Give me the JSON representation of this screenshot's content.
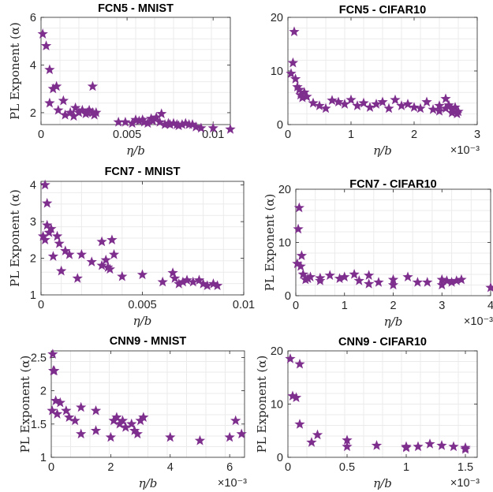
{
  "colors": {
    "marker": "#7E2F8E",
    "axis": "#262626",
    "grid": "#ebebeb"
  },
  "chart_data": [
    {
      "type": "scatter",
      "title": "FCN5 - MNIST",
      "xlabel": "η/b",
      "ylabel": "PL Exponent (α)",
      "xlim": [
        0,
        0.011
      ],
      "ylim": [
        1.5,
        6
      ],
      "xticks": [
        0,
        0.005,
        0.01
      ],
      "xticklabels": [
        "0",
        "0.005",
        "0.01"
      ],
      "yticks": [
        2,
        4,
        6
      ],
      "yticklabels": [
        "2",
        "4",
        "6"
      ],
      "grid": true,
      "marker": "star",
      "points": [
        [
          0.0001,
          5.3
        ],
        [
          0.0003,
          4.8
        ],
        [
          0.0005,
          3.8
        ],
        [
          0.0005,
          2.4
        ],
        [
          0.0007,
          3.0
        ],
        [
          0.0009,
          3.1
        ],
        [
          0.001,
          2.1
        ],
        [
          0.0013,
          2.5
        ],
        [
          0.0014,
          1.9
        ],
        [
          0.0017,
          2.0
        ],
        [
          0.0019,
          1.85
        ],
        [
          0.002,
          2.2
        ],
        [
          0.0022,
          2.0
        ],
        [
          0.0024,
          2.1
        ],
        [
          0.0026,
          1.95
        ],
        [
          0.0027,
          2.0
        ],
        [
          0.0028,
          2.1
        ],
        [
          0.003,
          2.0
        ],
        [
          0.003,
          3.1
        ],
        [
          0.0031,
          1.9
        ],
        [
          0.0032,
          2.0
        ],
        [
          0.0045,
          1.6
        ],
        [
          0.0049,
          1.6
        ],
        [
          0.0053,
          1.55
        ],
        [
          0.0055,
          1.7
        ],
        [
          0.0057,
          1.65
        ],
        [
          0.0059,
          1.7
        ],
        [
          0.006,
          1.6
        ],
        [
          0.0062,
          1.55
        ],
        [
          0.0064,
          1.75
        ],
        [
          0.0065,
          1.65
        ],
        [
          0.0067,
          1.8
        ],
        [
          0.0069,
          1.6
        ],
        [
          0.007,
          1.95
        ],
        [
          0.0072,
          1.5
        ],
        [
          0.0074,
          1.55
        ],
        [
          0.0075,
          1.5
        ],
        [
          0.0077,
          1.55
        ],
        [
          0.0079,
          1.5
        ],
        [
          0.008,
          1.45
        ],
        [
          0.0082,
          1.5
        ],
        [
          0.0084,
          1.55
        ],
        [
          0.0086,
          1.5
        ],
        [
          0.0088,
          1.5
        ],
        [
          0.009,
          1.4
        ],
        [
          0.0093,
          1.35
        ],
        [
          0.01,
          1.35
        ],
        [
          0.011,
          1.3
        ]
      ]
    },
    {
      "type": "scatter",
      "title": "FCN5 - CIFAR10",
      "xlabel": "η/b",
      "ylabel": "",
      "xlim": [
        0,
        0.003
      ],
      "ylim": [
        0,
        20
      ],
      "xticks": [
        0,
        0.001,
        0.002,
        0.003
      ],
      "xticklabels": [
        "0",
        "1",
        "2",
        "3"
      ],
      "yticks": [
        0,
        10,
        20
      ],
      "yticklabels": [
        "0",
        "10",
        "20"
      ],
      "exponent": "×10⁻³",
      "grid": true,
      "marker": "star",
      "points": [
        [
          5e-05,
          9.5
        ],
        [
          8e-05,
          11.5
        ],
        [
          0.0001,
          17.3
        ],
        [
          0.00012,
          8.5
        ],
        [
          0.00015,
          7.0
        ],
        [
          0.00018,
          6.5
        ],
        [
          0.0002,
          5.5
        ],
        [
          0.00023,
          5.0
        ],
        [
          0.00026,
          6.0
        ],
        [
          0.0003,
          5.2
        ],
        [
          0.0004,
          4.0
        ],
        [
          0.0005,
          3.5
        ],
        [
          0.0006,
          3.0
        ],
        [
          0.0007,
          4.5
        ],
        [
          0.0008,
          4.2
        ],
        [
          0.0009,
          3.8
        ],
        [
          0.001,
          4.6
        ],
        [
          0.0011,
          3.5
        ],
        [
          0.0012,
          4.0
        ],
        [
          0.0013,
          3.2
        ],
        [
          0.0014,
          3.8
        ],
        [
          0.0015,
          4.2
        ],
        [
          0.0016,
          3.0
        ],
        [
          0.0017,
          4.6
        ],
        [
          0.0018,
          3.5
        ],
        [
          0.0019,
          3.8
        ],
        [
          0.002,
          3.2
        ],
        [
          0.0021,
          3.0
        ],
        [
          0.0022,
          4.2
        ],
        [
          0.0023,
          2.8
        ],
        [
          0.0024,
          3.5
        ],
        [
          0.0025,
          3.0
        ],
        [
          0.0026,
          2.8
        ],
        [
          0.00265,
          3.2
        ],
        [
          0.0027,
          2.4
        ],
        [
          0.0025,
          4.8
        ],
        [
          0.0024,
          2.5
        ],
        [
          0.00255,
          3.6
        ],
        [
          0.0026,
          2.2
        ],
        [
          0.00268,
          2.0
        ]
      ]
    },
    {
      "type": "scatter",
      "title": "FCN7 - MNIST",
      "xlabel": "η/b",
      "ylabel": "PL Exponent (α)",
      "xlim": [
        0,
        0.01
      ],
      "ylim": [
        1,
        4.1
      ],
      "xticks": [
        0,
        0.005,
        0.01
      ],
      "xticklabels": [
        "0",
        "0.005",
        "0.01"
      ],
      "yticks": [
        1,
        2,
        3,
        4
      ],
      "yticklabels": [
        "1",
        "2",
        "3",
        "4"
      ],
      "grid": true,
      "marker": "star",
      "points": [
        [
          0.0001,
          2.6
        ],
        [
          0.0002,
          2.5
        ],
        [
          0.0002,
          4.0
        ],
        [
          0.0003,
          3.5
        ],
        [
          0.0003,
          2.9
        ],
        [
          0.0004,
          2.7
        ],
        [
          0.0005,
          2.8
        ],
        [
          0.0006,
          2.05
        ],
        [
          0.0008,
          2.6
        ],
        [
          0.0009,
          2.4
        ],
        [
          0.001,
          1.65
        ],
        [
          0.0012,
          2.2
        ],
        [
          0.0014,
          2.1
        ],
        [
          0.0018,
          1.45
        ],
        [
          0.002,
          2.1
        ],
        [
          0.0025,
          1.9
        ],
        [
          0.003,
          1.8
        ],
        [
          0.003,
          2.45
        ],
        [
          0.0032,
          1.95
        ],
        [
          0.0033,
          1.75
        ],
        [
          0.0034,
          1.7
        ],
        [
          0.0035,
          2.5
        ],
        [
          0.0036,
          2.1
        ],
        [
          0.004,
          1.5
        ],
        [
          0.005,
          1.55
        ],
        [
          0.006,
          1.35
        ],
        [
          0.0065,
          1.6
        ],
        [
          0.0066,
          1.45
        ],
        [
          0.0068,
          1.3
        ],
        [
          0.007,
          1.35
        ],
        [
          0.0072,
          1.4
        ],
        [
          0.0075,
          1.35
        ],
        [
          0.0078,
          1.4
        ],
        [
          0.008,
          1.3
        ],
        [
          0.0082,
          1.25
        ],
        [
          0.0085,
          1.3
        ],
        [
          0.0087,
          1.25
        ]
      ]
    },
    {
      "type": "scatter",
      "title": "FCN7 - CIFAR10",
      "xlabel": "η/b",
      "ylabel": "PL Exponent (α)",
      "xlim": [
        0,
        0.004
      ],
      "ylim": [
        0,
        20
      ],
      "xticks": [
        0,
        0.001,
        0.002,
        0.003,
        0.004
      ],
      "xticklabels": [
        "0",
        "1",
        "2",
        "3",
        "4"
      ],
      "yticks": [
        0,
        10,
        20
      ],
      "yticklabels": [
        "0",
        "10",
        "20"
      ],
      "exponent": "×10⁻³",
      "grid": true,
      "marker": "star",
      "points": [
        [
          3e-05,
          6.0
        ],
        [
          5e-05,
          12.5
        ],
        [
          7e-05,
          16.5
        ],
        [
          0.0001,
          5.5
        ],
        [
          0.00012,
          7.5
        ],
        [
          0.00015,
          4.0
        ],
        [
          0.0002,
          3.0
        ],
        [
          0.00025,
          3.2
        ],
        [
          0.0003,
          3.5
        ],
        [
          0.0005,
          2.8
        ],
        [
          0.0005,
          3.3
        ],
        [
          0.0007,
          3.8
        ],
        [
          0.0009,
          3.2
        ],
        [
          0.001,
          3.5
        ],
        [
          0.0012,
          4.0
        ],
        [
          0.0013,
          2.8
        ],
        [
          0.0015,
          3.8
        ],
        [
          0.0015,
          2.2
        ],
        [
          0.0017,
          2.5
        ],
        [
          0.002,
          3.0
        ],
        [
          0.002,
          2.0
        ],
        [
          0.0023,
          3.5
        ],
        [
          0.0025,
          2.5
        ],
        [
          0.0027,
          2.5
        ],
        [
          0.003,
          2.0
        ],
        [
          0.003,
          3.0
        ],
        [
          0.0031,
          2.8
        ],
        [
          0.0032,
          2.5
        ],
        [
          0.0033,
          2.8
        ],
        [
          0.0034,
          3.0
        ],
        [
          0.004,
          1.5
        ]
      ]
    },
    {
      "type": "scatter",
      "title": "CNN9 - MNIST",
      "xlabel": "η/b",
      "ylabel": "PL Exponent (α)",
      "xlim": [
        0,
        0.0065
      ],
      "ylim": [
        1,
        2.6
      ],
      "xticks": [
        0,
        0.002,
        0.004,
        0.006
      ],
      "xticklabels": [
        "0",
        "2",
        "4",
        "6"
      ],
      "yticks": [
        1,
        1.5,
        2,
        2.5
      ],
      "yticklabels": [
        "1",
        "1.5",
        "2",
        "2.5"
      ],
      "exponent": "×10⁻³",
      "grid": true,
      "marker": "star",
      "points": [
        [
          3e-05,
          1.7
        ],
        [
          5e-05,
          2.55
        ],
        [
          7e-05,
          2.3
        ],
        [
          0.0001,
          2.3
        ],
        [
          0.00015,
          1.85
        ],
        [
          0.0002,
          1.65
        ],
        [
          0.0003,
          1.82
        ],
        [
          0.0005,
          1.7
        ],
        [
          0.0006,
          1.6
        ],
        [
          0.0008,
          1.55
        ],
        [
          0.001,
          1.75
        ],
        [
          0.001,
          1.35
        ],
        [
          0.0015,
          1.7
        ],
        [
          0.0015,
          1.4
        ],
        [
          0.002,
          1.3
        ],
        [
          0.0021,
          1.55
        ],
        [
          0.0022,
          1.6
        ],
        [
          0.0023,
          1.5
        ],
        [
          0.0024,
          1.55
        ],
        [
          0.0025,
          1.45
        ],
        [
          0.0027,
          1.5
        ],
        [
          0.0028,
          1.4
        ],
        [
          0.0029,
          1.35
        ],
        [
          0.003,
          1.55
        ],
        [
          0.0031,
          1.6
        ],
        [
          0.004,
          1.3
        ],
        [
          0.005,
          1.25
        ],
        [
          0.006,
          1.3
        ],
        [
          0.0062,
          1.55
        ],
        [
          0.0064,
          1.35
        ]
      ]
    },
    {
      "type": "scatter",
      "title": "CNN9 - CIFAR10",
      "xlabel": "η/b",
      "ylabel": "PL Exponent (α)",
      "xlim": [
        0,
        0.0016
      ],
      "ylim": [
        0,
        20
      ],
      "xticks": [
        0,
        0.0005,
        0.001,
        0.0015
      ],
      "xticklabels": [
        "0",
        "0.5",
        "1",
        "1.5"
      ],
      "yticks": [
        0,
        10,
        20
      ],
      "yticklabels": [
        "0",
        "10",
        "20"
      ],
      "exponent": "×10⁻³",
      "grid": true,
      "marker": "star",
      "points": [
        [
          2e-05,
          18.5
        ],
        [
          4e-05,
          11.5
        ],
        [
          7e-05,
          11.2
        ],
        [
          0.0001,
          17.5
        ],
        [
          0.0001,
          6.2
        ],
        [
          0.0002,
          2.8
        ],
        [
          0.00025,
          4.2
        ],
        [
          0.0005,
          3.2
        ],
        [
          0.0005,
          2.0
        ],
        [
          0.00075,
          2.2
        ],
        [
          0.001,
          2.0
        ],
        [
          0.001,
          1.8
        ],
        [
          0.0011,
          2.0
        ],
        [
          0.0012,
          2.5
        ],
        [
          0.0013,
          2.2
        ],
        [
          0.0014,
          2.0
        ],
        [
          0.0015,
          1.8
        ],
        [
          0.0015,
          1.5
        ]
      ]
    }
  ]
}
